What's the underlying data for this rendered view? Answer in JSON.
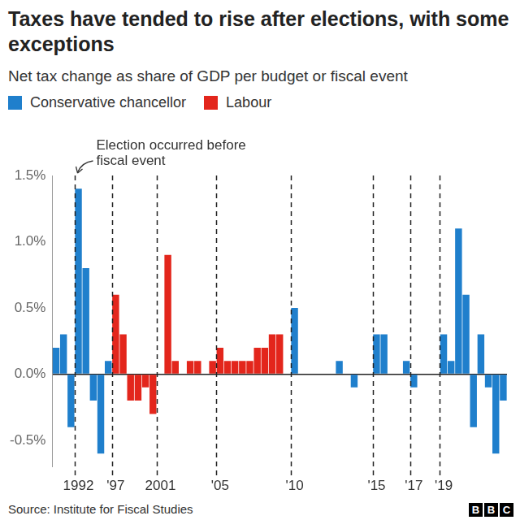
{
  "chart_data": {
    "type": "bar",
    "title": "Taxes have tended to rise after elections, with some exceptions",
    "subtitle": "Net tax change as share of GDP per budget or fiscal event",
    "annotation": [
      "Election occurred before",
      "fiscal event"
    ],
    "source": "Source: Institute for Fiscal Studies",
    "logo": "BBC",
    "legend": "top-left",
    "grid": false,
    "categories": [
      null,
      null,
      null,
      "1992",
      null,
      null,
      null,
      null,
      "'97",
      null,
      null,
      null,
      null,
      null,
      "2001",
      null,
      null,
      null,
      null,
      null,
      null,
      null,
      "'05",
      null,
      null,
      null,
      null,
      null,
      null,
      null,
      null,
      null,
      "'10",
      null,
      null,
      null,
      null,
      null,
      null,
      null,
      null,
      null,
      null,
      "'15",
      null,
      null,
      null,
      null,
      "'17",
      null,
      null,
      null,
      "'19",
      null,
      null,
      null,
      null,
      null,
      null,
      null,
      null
    ],
    "series": [
      {
        "name": "Conservative chancellor",
        "color": "#1f7fcc",
        "values": [
          0.2,
          0.3,
          -0.4,
          1.4,
          0.8,
          -0.2,
          -0.6,
          0.1,
          null,
          null,
          null,
          null,
          null,
          null,
          null,
          null,
          null,
          null,
          null,
          null,
          null,
          null,
          null,
          null,
          null,
          null,
          null,
          null,
          null,
          null,
          null,
          null,
          0.5,
          0,
          0,
          0,
          0,
          0,
          0.1,
          0,
          -0.1,
          0,
          0,
          0.3,
          0.3,
          0,
          0,
          0.1,
          -0.1,
          0,
          0,
          0,
          0.3,
          0.1,
          1.1,
          0.6,
          -0.4,
          0.3,
          -0.1,
          -0.6,
          -0.2
        ]
      },
      {
        "name": "Labour",
        "color": "#e3261c",
        "values": [
          null,
          null,
          null,
          null,
          null,
          null,
          null,
          null,
          0.6,
          0.3,
          -0.2,
          -0.2,
          -0.1,
          -0.3,
          0,
          0.9,
          0.1,
          0,
          0.1,
          0.1,
          0,
          0.1,
          0.2,
          0.1,
          0.1,
          0.1,
          0.1,
          0.2,
          0.2,
          0.3,
          0.3,
          0,
          null,
          null,
          null,
          null,
          null,
          null,
          null,
          null,
          null,
          null,
          null,
          null,
          null,
          null,
          null,
          null,
          null,
          null,
          null,
          null,
          null,
          null,
          null,
          null,
          null,
          null,
          null,
          null,
          null
        ]
      }
    ],
    "ylim": [
      -0.7,
      1.5
    ],
    "yticks": [
      {
        "value": -0.5,
        "label": "-0.5%"
      },
      {
        "value": 0,
        "label": "0.0%"
      },
      {
        "value": 0.5,
        "label": "0.5%"
      },
      {
        "value": 1,
        "label": "1.0%"
      },
      {
        "value": 1.5,
        "label": "1.5%"
      }
    ]
  }
}
